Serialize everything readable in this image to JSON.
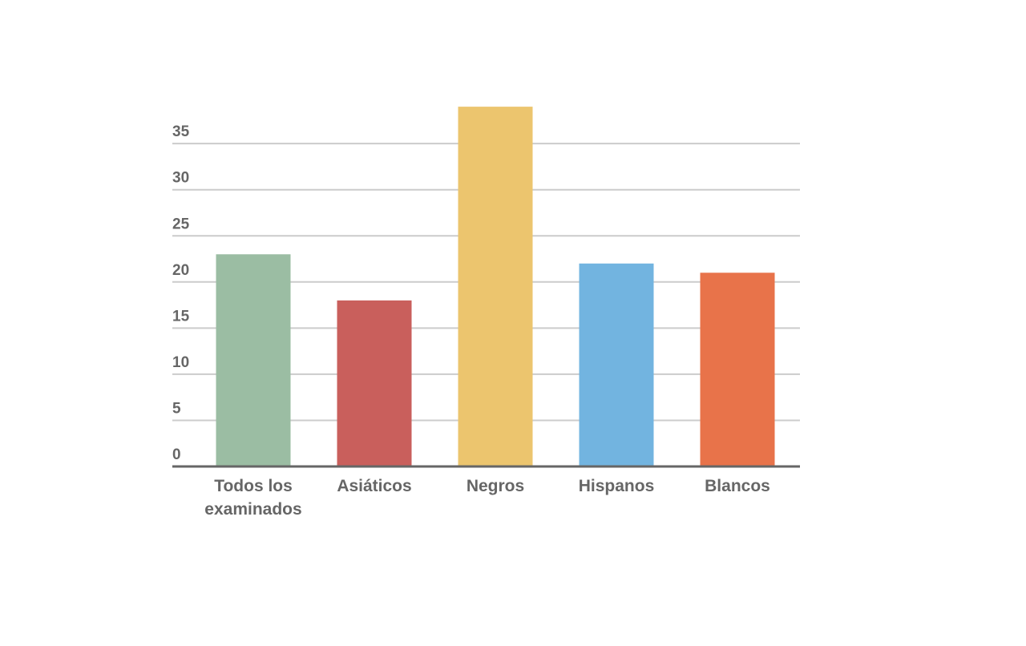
{
  "chart_data": {
    "type": "bar",
    "categories": [
      "Todos los examinados",
      "Asiáticos",
      "Negros",
      "Hispanos",
      "Blancos"
    ],
    "values": [
      23,
      18,
      39,
      22,
      21
    ],
    "colors": [
      "#9bbda3",
      "#c95f5c",
      "#ecc56e",
      "#72b4e0",
      "#e8734a"
    ],
    "ylim": [
      0,
      40
    ],
    "yticks": [
      0,
      5,
      10,
      15,
      20,
      25,
      30,
      35
    ],
    "grid": true
  }
}
